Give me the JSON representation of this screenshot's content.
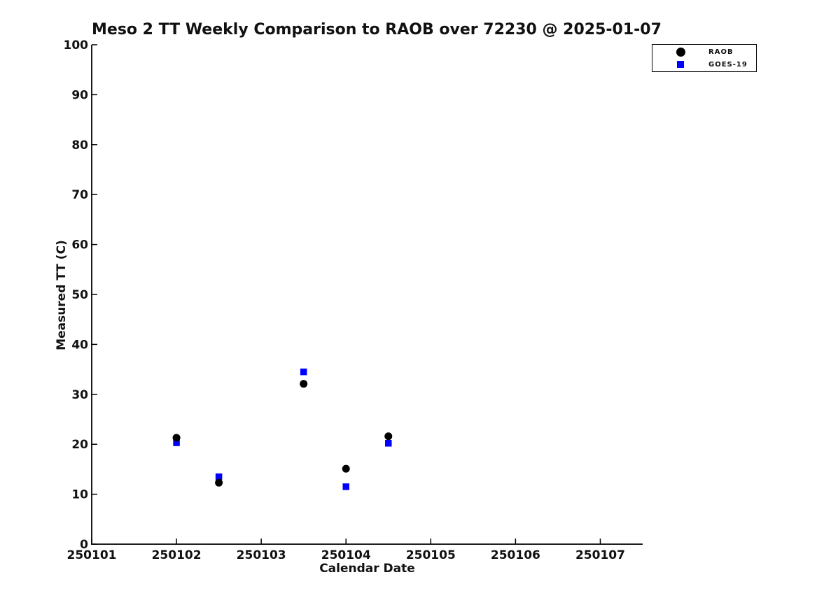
{
  "chart_data": {
    "type": "scatter",
    "title": "Meso 2 TT Weekly Comparison to RAOB over 72230 @ 2025-01-07",
    "xlabel": "Calendar Date",
    "ylabel": "Measured TT (C)",
    "xlim": [
      250101,
      250107.5
    ],
    "ylim": [
      0,
      100
    ],
    "x_ticks": [
      250101,
      250102,
      250103,
      250104,
      250105,
      250106,
      250107
    ],
    "x_tick_labels": [
      "250101",
      "250102",
      "250103",
      "250104",
      "250105",
      "250106",
      "250107"
    ],
    "y_ticks": [
      0,
      10,
      20,
      30,
      40,
      50,
      60,
      70,
      80,
      90,
      100
    ],
    "y_tick_labels": [
      "0",
      "10",
      "20",
      "30",
      "40",
      "50",
      "60",
      "70",
      "80",
      "90",
      "100"
    ],
    "grid": false,
    "legend_position": "upper right",
    "axis_color": "#000000",
    "text_color": "#111111",
    "background_color": "#ffffff",
    "series": [
      {
        "name": "RAOB",
        "marker": "circle",
        "color": "#000000",
        "points": [
          [
            250102.0,
            21.3
          ],
          [
            250102.5,
            12.3
          ],
          [
            250103.5,
            32.1
          ],
          [
            250104.0,
            15.1
          ],
          [
            250104.5,
            21.6
          ]
        ]
      },
      {
        "name": "GOES-19",
        "marker": "square",
        "color": "#0000ff",
        "points": [
          [
            250102.0,
            20.3
          ],
          [
            250102.5,
            13.5
          ],
          [
            250103.5,
            34.5
          ],
          [
            250104.0,
            11.5
          ],
          [
            250104.5,
            20.2
          ]
        ]
      }
    ]
  }
}
